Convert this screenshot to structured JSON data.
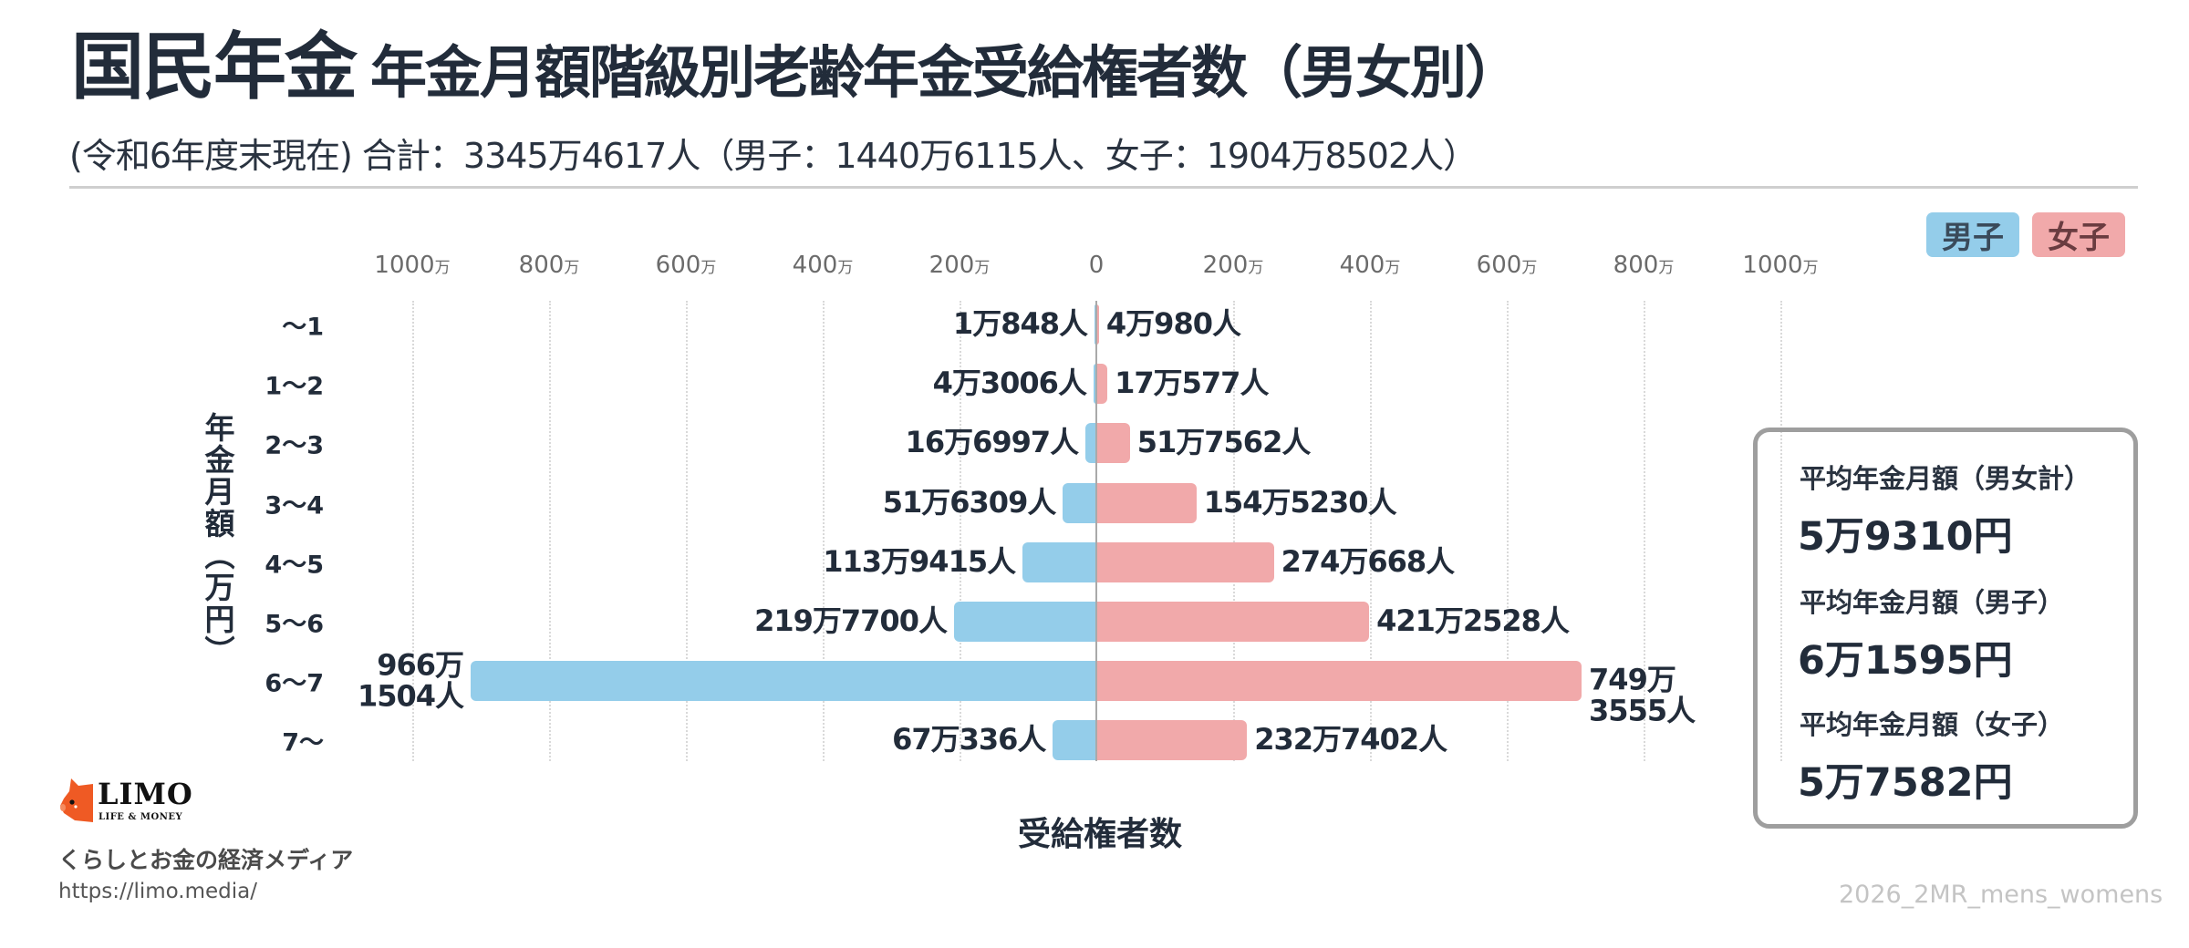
{
  "header": {
    "title_main": "国民年金",
    "title_sub": "年金月額階級別老齢年金受給権者数（男女別）",
    "subtitle": "(令和6年度末現在) 合計：3345万4617人（男子：1440万6115人、女子：1904万8502人）"
  },
  "legend": {
    "male": {
      "label": "男子",
      "color": "#94cdea"
    },
    "female": {
      "label": "女子",
      "color": "#f1a9aa"
    }
  },
  "axis": {
    "left_ticks": [
      {
        "num": "1000",
        "unit": "万"
      },
      {
        "num": "800",
        "unit": "万"
      },
      {
        "num": "600",
        "unit": "万"
      },
      {
        "num": "400",
        "unit": "万"
      },
      {
        "num": "200",
        "unit": "万"
      }
    ],
    "center_tick": "0",
    "right_ticks": [
      {
        "num": "200",
        "unit": "万"
      },
      {
        "num": "400",
        "unit": "万"
      },
      {
        "num": "600",
        "unit": "万"
      },
      {
        "num": "800",
        "unit": "万"
      },
      {
        "num": "1000",
        "unit": "万"
      }
    ],
    "y_title": "年金月額（万円）",
    "x_title": "受給権者数"
  },
  "info_box": {
    "items": [
      {
        "label": "平均年金月額（男女計）",
        "value": "5万9310円"
      },
      {
        "label": "平均年金月額（男子）",
        "value": "6万1595円"
      },
      {
        "label": "平均年金月額（女子）",
        "value": "5万7582円"
      }
    ]
  },
  "footer": {
    "logo_word": "LIMO",
    "logo_tag": "LIFE & MONEY",
    "tagline": "くらしとお金の経済メディア",
    "url": "https://limo.media/",
    "watermark": "2026_2MR_mens_womens"
  },
  "chart_data": {
    "type": "bar",
    "orientation": "horizontal-butterfly",
    "title": "国民年金 年金月額階級別老齢年金受給権者数（男女別）",
    "subtitle": "(令和6年度末現在) 合計：3345万4617人（男子：1440万6115人、女子：1904万8502人）",
    "xlabel": "受給権者数",
    "ylabel": "年金月額（万円）",
    "xlim": [
      -1000,
      1000
    ],
    "x_unit": "万人",
    "grid": true,
    "legend_position": "top-right",
    "categories": [
      "〜1",
      "1〜2",
      "2〜3",
      "3〜4",
      "4〜5",
      "5〜6",
      "6〜7",
      "7〜"
    ],
    "series": [
      {
        "name": "男子",
        "color": "#94cdea",
        "values": [
          10848,
          43006,
          166997,
          516309,
          1139415,
          2197700,
          9661504,
          670336
        ],
        "labels": [
          "1万848人",
          "4万3006人",
          "16万6997人",
          "51万6309人",
          "113万9415人",
          "219万7700人",
          "966万\n1504人",
          "67万336人"
        ]
      },
      {
        "name": "女子",
        "color": "#f1a9aa",
        "values": [
          40980,
          170577,
          517562,
          1545230,
          2740668,
          4212528,
          7493555,
          2327402
        ],
        "labels": [
          "4万980人",
          "17万577人",
          "51万7562人",
          "154万5230人",
          "274万668人",
          "421万2528人",
          "749万\n3555人",
          "232万7402人"
        ]
      }
    ],
    "annotations": [
      "平均年金月額（男女計）5万9310円",
      "平均年金月額（男子）6万1595円",
      "平均年金月額（女子）5万7582円"
    ]
  }
}
